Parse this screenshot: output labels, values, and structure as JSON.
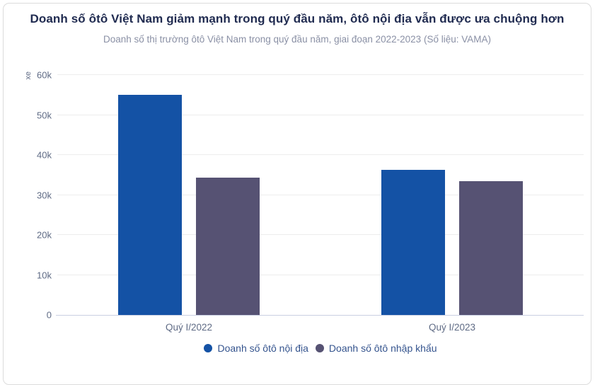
{
  "chart_data": {
    "type": "bar",
    "title": "Doanh số ôtô Việt Nam giảm mạnh trong quý đầu năm, ôtô nội địa vẫn được ưa chuộng hơn",
    "subtitle": "Doanh số thị trường ôtô Việt Nam trong quý đầu năm, giai đoạn 2022-2023 (Số liệu: VAMA)",
    "ylabel": "xe",
    "xlabel": "",
    "categories": [
      "Quý I/2022",
      "Quý I/2023"
    ],
    "series": [
      {
        "name": "Doanh số ôtô nội địa",
        "color": "#1452a5",
        "values": [
          55000,
          36200
        ]
      },
      {
        "name": "Doanh số ôtô nhập khẩu",
        "color": "#565273",
        "values": [
          34400,
          33400
        ]
      }
    ],
    "ylim": [
      0,
      60000
    ],
    "yticks": [
      {
        "value": 0,
        "label": "0"
      },
      {
        "value": 10000,
        "label": "10k"
      },
      {
        "value": 20000,
        "label": "20k"
      },
      {
        "value": 30000,
        "label": "30k"
      },
      {
        "value": 40000,
        "label": "40k"
      },
      {
        "value": 50000,
        "label": "50k"
      },
      {
        "value": 60000,
        "label": "60k"
      }
    ],
    "grid": true,
    "legend_position": "bottom"
  },
  "colors": {
    "title_text": "#212c51",
    "subtitle_text": "#8a90a5",
    "axis_text": "#5f6b85",
    "legend_text": "#35548e",
    "gridline": "#ededed",
    "axis_line": "#c9cfe2",
    "card_border": "#dcdcdc",
    "background": "#ffffff",
    "series_domestic": "#1452a5",
    "series_imported": "#565273"
  }
}
